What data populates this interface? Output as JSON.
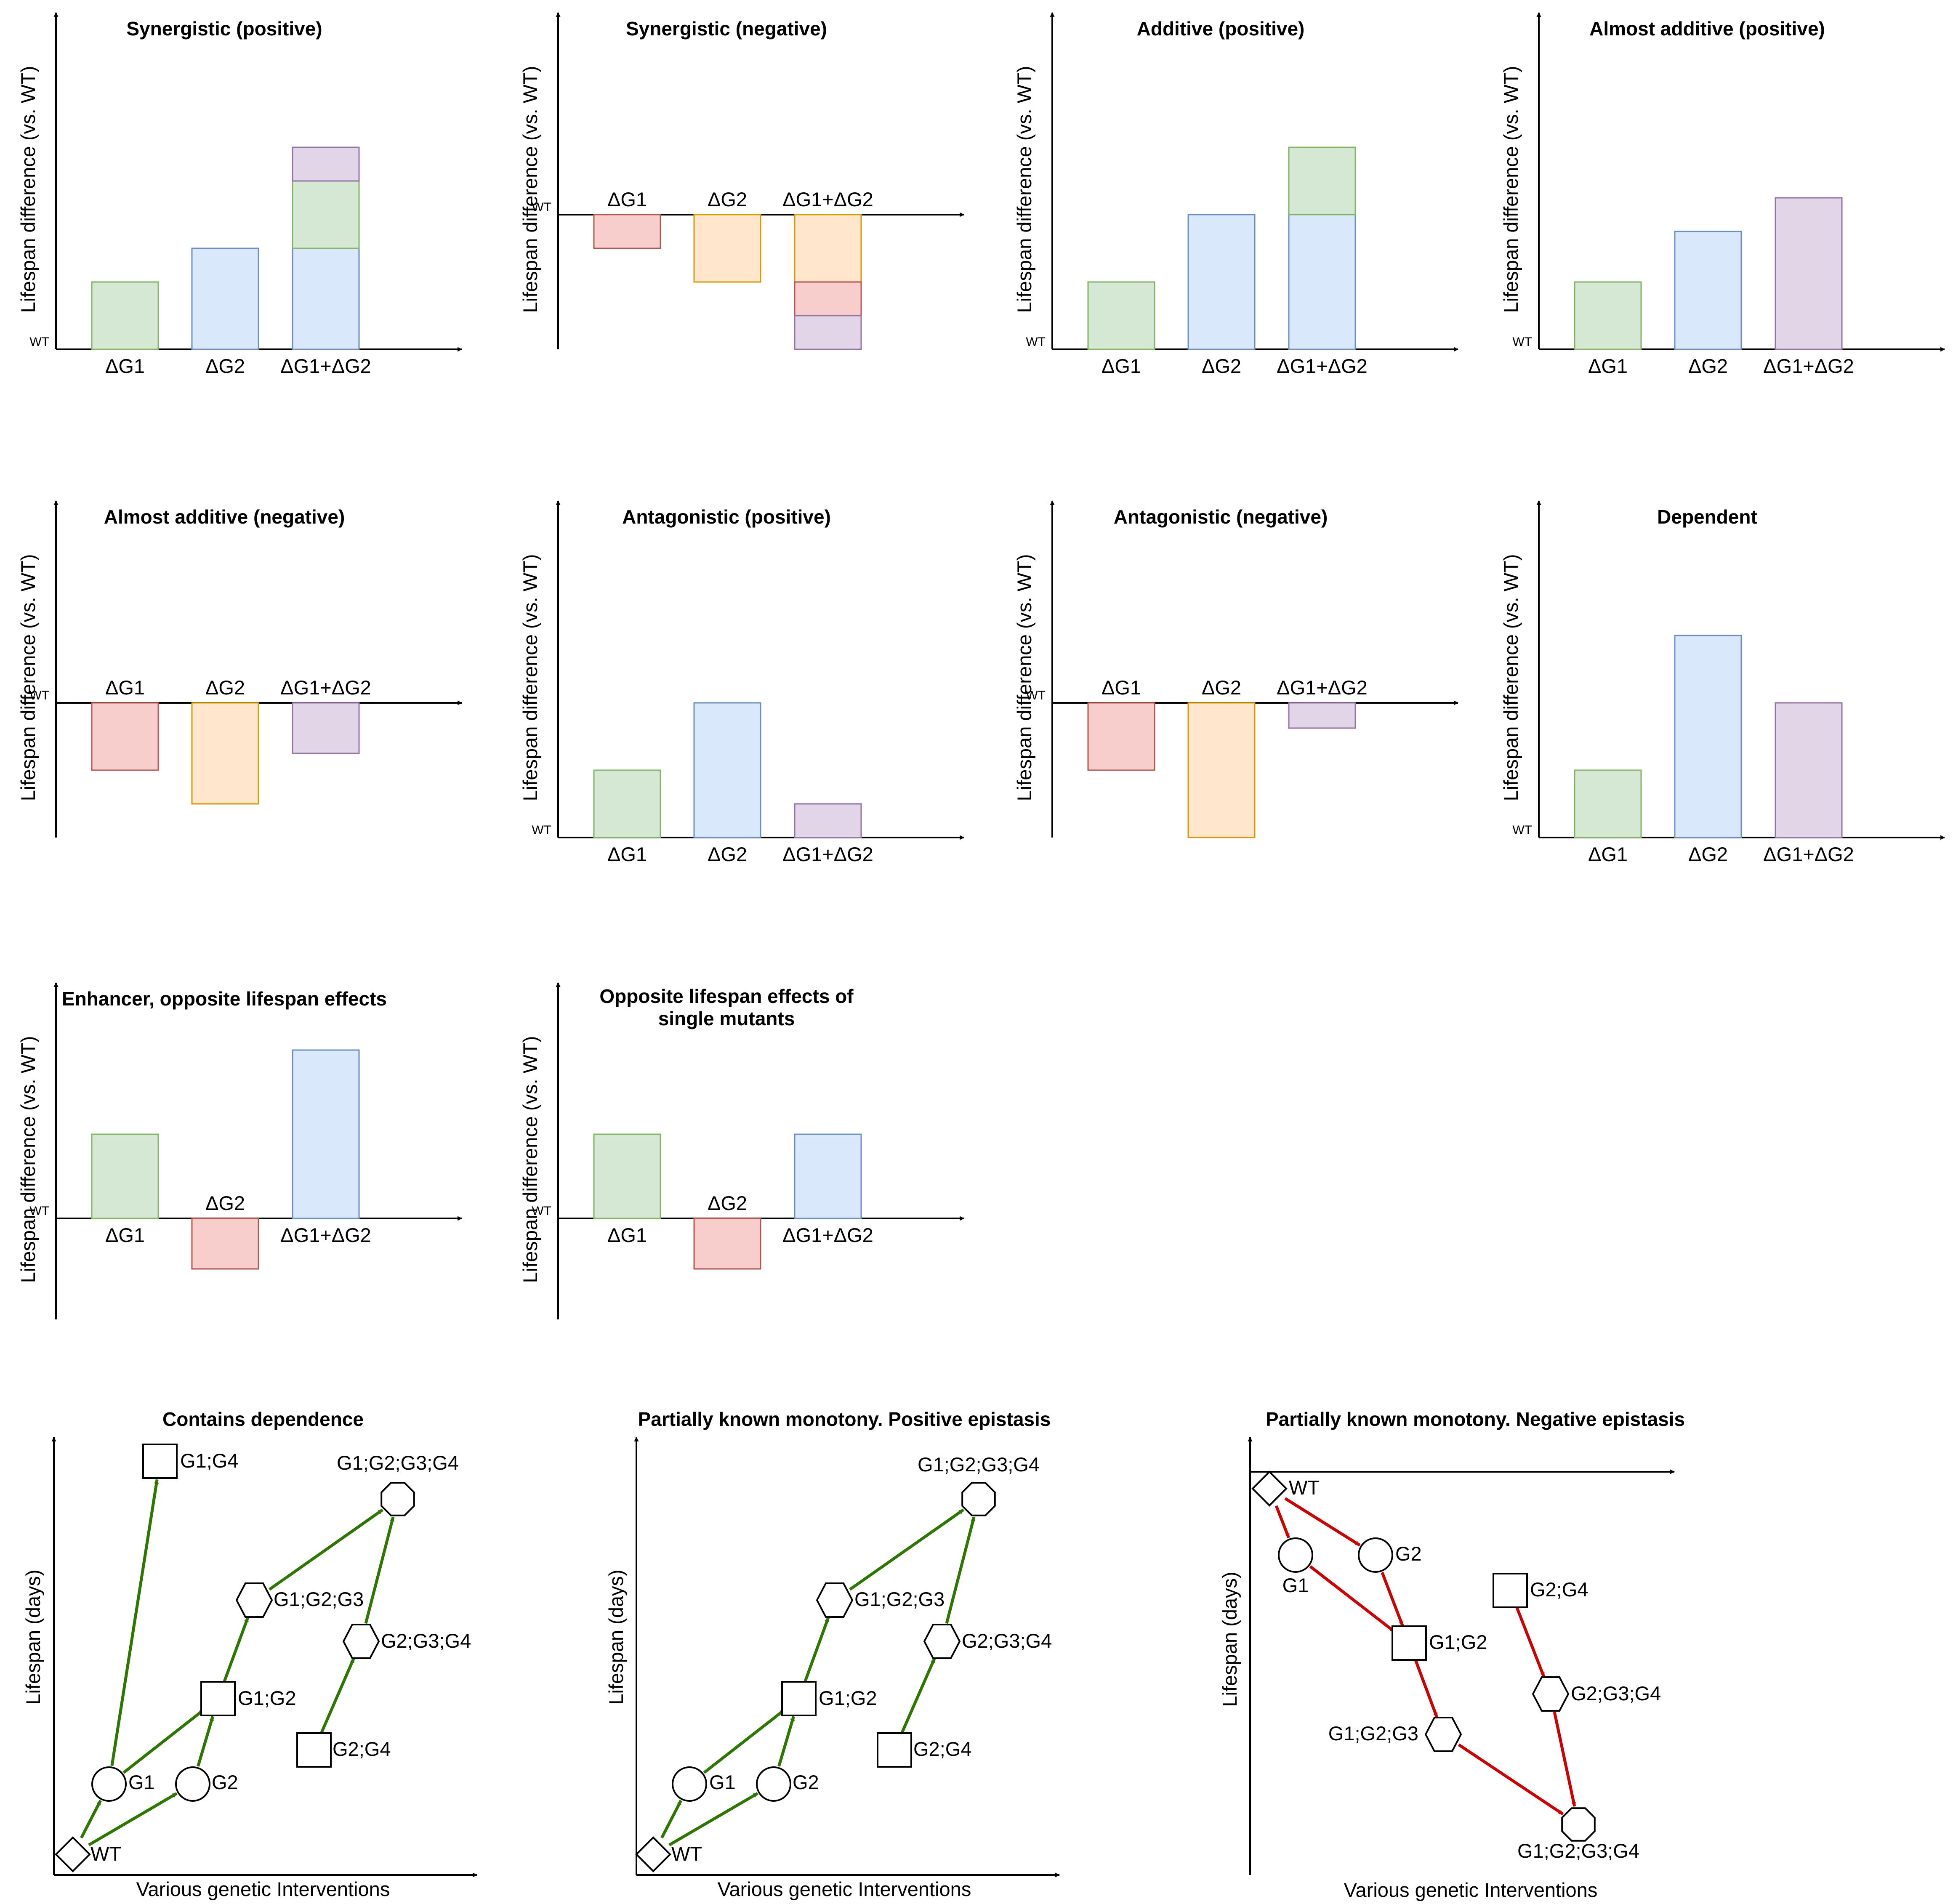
{
  "colors": {
    "green": {
      "fill": "#d5e8d4",
      "stroke": "#82b366"
    },
    "blue": {
      "fill": "#dae8fc",
      "stroke": "#6c8ebf"
    },
    "purple": {
      "fill": "#e1d5e7",
      "stroke": "#9673a6"
    },
    "red": {
      "fill": "#f8cecc",
      "stroke": "#b85450"
    },
    "orange": {
      "fill": "#ffe6cc",
      "stroke": "#d79b00"
    },
    "pos_edge": "#2d7600",
    "neg_edge": "#cc0000"
  },
  "bar_panels": [
    {
      "title": "Synergistic (positive)",
      "y_label": "Lifespan difference (vs. WT)",
      "wt_label": "WT",
      "baseline": "bottom",
      "labels": [
        "ΔG1",
        "ΔG2",
        "ΔG1+ΔG2"
      ],
      "bars": [
        [
          {
            "h": 1,
            "c": "green"
          }
        ],
        [
          {
            "h": 1.5,
            "c": "blue"
          }
        ],
        [
          {
            "h": 1.5,
            "c": "blue"
          },
          {
            "h": 1,
            "c": "green"
          },
          {
            "h": 0.5,
            "c": "purple"
          }
        ]
      ]
    },
    {
      "title": "Synergistic (negative)",
      "y_label": "Lifespan difference (vs. WT)",
      "wt_label": "WT",
      "baseline": "middle",
      "labels": [
        "ΔG1",
        "ΔG2",
        "ΔG1+ΔG2"
      ],
      "bars": [
        [
          {
            "h": -0.5,
            "c": "red"
          }
        ],
        [
          {
            "h": -1,
            "c": "orange"
          }
        ],
        [
          {
            "h": -1,
            "c": "orange"
          },
          {
            "h": -0.5,
            "c": "red"
          },
          {
            "h": -0.5,
            "c": "purple"
          }
        ]
      ]
    },
    {
      "title": "Additive (positive)",
      "y_label": "Lifespan difference (vs. WT)",
      "wt_label": "WT",
      "baseline": "bottom",
      "labels": [
        "ΔG1",
        "ΔG2",
        "ΔG1+ΔG2"
      ],
      "bars": [
        [
          {
            "h": 1,
            "c": "green"
          }
        ],
        [
          {
            "h": 2,
            "c": "blue"
          }
        ],
        [
          {
            "h": 2,
            "c": "blue"
          },
          {
            "h": 1,
            "c": "green"
          }
        ]
      ]
    },
    {
      "title": "Almost additive (positive)",
      "y_label": "Lifespan difference (vs. WT)",
      "wt_label": "WT",
      "baseline": "bottom",
      "labels": [
        "ΔG1",
        "ΔG2",
        "ΔG1+ΔG2"
      ],
      "bars": [
        [
          {
            "h": 1,
            "c": "green"
          }
        ],
        [
          {
            "h": 1.75,
            "c": "blue"
          }
        ],
        [
          {
            "h": 2.25,
            "c": "purple"
          }
        ]
      ]
    },
    {
      "title": "Almost additive (negative)",
      "y_label": "Lifespan difference (vs. WT)",
      "wt_label": "WT",
      "baseline": "middle",
      "labels": [
        "ΔG1",
        "ΔG2",
        "ΔG1+ΔG2"
      ],
      "bars": [
        [
          {
            "h": -1,
            "c": "red"
          }
        ],
        [
          {
            "h": -1.5,
            "c": "orange"
          }
        ],
        [
          {
            "h": -0.75,
            "c": "purple"
          }
        ]
      ]
    },
    {
      "title": "Antagonistic (positive)",
      "y_label": "Lifespan difference (vs. WT)",
      "wt_label": "WT",
      "baseline": "bottom",
      "labels": [
        "ΔG1",
        "ΔG2",
        "ΔG1+ΔG2"
      ],
      "bars": [
        [
          {
            "h": 1,
            "c": "green"
          }
        ],
        [
          {
            "h": 2,
            "c": "blue"
          }
        ],
        [
          {
            "h": 0.5,
            "c": "purple"
          }
        ]
      ]
    },
    {
      "title": "Antagonistic (negative)",
      "y_label": "Lifespan difference (vs. WT)",
      "wt_label": "WT",
      "baseline": "middle",
      "labels": [
        "ΔG1",
        "ΔG2",
        "ΔG1+ΔG2"
      ],
      "bars": [
        [
          {
            "h": -1,
            "c": "red"
          }
        ],
        [
          {
            "h": -2,
            "c": "orange"
          }
        ],
        [
          {
            "h": -0.375,
            "c": "purple"
          }
        ]
      ]
    },
    {
      "title": "Dependent",
      "y_label": "Lifespan difference (vs. WT)",
      "wt_label": "WT",
      "baseline": "bottom",
      "labels": [
        "ΔG1",
        "ΔG2",
        "ΔG1+ΔG2"
      ],
      "bars": [
        [
          {
            "h": 1,
            "c": "green"
          }
        ],
        [
          {
            "h": 3,
            "c": "blue"
          }
        ],
        [
          {
            "h": 2,
            "c": "purple"
          }
        ]
      ]
    },
    {
      "title": "Enhancer, opposite lifespan effects",
      "y_label": "Lifespan difference (vs. WT)",
      "wt_label": "WT",
      "baseline": "middle",
      "labels": [
        "ΔG1",
        "ΔG2",
        "ΔG1+ΔG2"
      ],
      "bars": [
        [
          {
            "h": 1.25,
            "c": "green"
          }
        ],
        [
          {
            "h": -0.75,
            "c": "red"
          }
        ],
        [
          {
            "h": 2.5,
            "c": "blue"
          }
        ]
      ]
    },
    {
      "title": "Opposite lifespan effects of",
      "title2": "single mutants",
      "y_label": "Lifespan difference (vs. WT)",
      "wt_label": "WT",
      "baseline": "middle",
      "labels": [
        "ΔG1",
        "ΔG2",
        "ΔG1+ΔG2"
      ],
      "bars": [
        [
          {
            "h": 1.25,
            "c": "green"
          }
        ],
        [
          {
            "h": -0.75,
            "c": "red"
          }
        ],
        [
          {
            "h": 1.25,
            "c": "blue"
          }
        ]
      ]
    }
  ],
  "network_panels": [
    {
      "title": "Contains dependence",
      "y_label": "Lifespan (days)",
      "x_label": "Various genetic Interventions",
      "edge_color": "pos_edge",
      "nodes": [
        {
          "id": "WT",
          "shape": "diamond",
          "label": "WT"
        },
        {
          "id": "G1",
          "shape": "circle",
          "label": "G1"
        },
        {
          "id": "G2",
          "shape": "circle",
          "label": "G2"
        },
        {
          "id": "G1G2",
          "shape": "square",
          "label": "G1;G2"
        },
        {
          "id": "G1G2G3",
          "shape": "hexagon",
          "label": "G1;G2;G3"
        },
        {
          "id": "G1G2G3G4",
          "shape": "octagon",
          "label": "G1;G2;G3;G4"
        },
        {
          "id": "G1G4",
          "shape": "square",
          "label": "G1;G4"
        },
        {
          "id": "G2G4",
          "shape": "square",
          "label": "G2;G4"
        },
        {
          "id": "G2G3G4",
          "shape": "hexagon",
          "label": "G2;G3;G4"
        }
      ],
      "edges": [
        [
          "WT",
          "G1"
        ],
        [
          "WT",
          "G2"
        ],
        [
          "G1",
          "G1G4"
        ],
        [
          "G1",
          "G1G2"
        ],
        [
          "G2",
          "G1G2"
        ],
        [
          "G1G2",
          "G1G2G3"
        ],
        [
          "G1G2G3",
          "G1G2G3G4"
        ],
        [
          "G2G4",
          "G2G3G4"
        ],
        [
          "G2G3G4",
          "G1G2G3G4"
        ]
      ]
    },
    {
      "title": "Partially known monotony. Positive epistasis",
      "y_label": "Lifespan (days)",
      "x_label": "Various genetic Interventions",
      "edge_color": "pos_edge",
      "nodes": [
        {
          "id": "WT",
          "shape": "diamond",
          "label": "WT"
        },
        {
          "id": "G1",
          "shape": "circle",
          "label": "G1"
        },
        {
          "id": "G2",
          "shape": "circle",
          "label": "G2"
        },
        {
          "id": "G1G2",
          "shape": "square",
          "label": "G1;G2"
        },
        {
          "id": "G1G2G3",
          "shape": "hexagon",
          "label": "G1;G2;G3"
        },
        {
          "id": "G1G2G3G4",
          "shape": "octagon",
          "label": "G1;G2;G3;G4"
        },
        {
          "id": "G2G4",
          "shape": "square",
          "label": "G2;G4"
        },
        {
          "id": "G2G3G4",
          "shape": "hexagon",
          "label": "G2;G3;G4"
        }
      ],
      "edges": [
        [
          "WT",
          "G1"
        ],
        [
          "WT",
          "G2"
        ],
        [
          "G1",
          "G1G2"
        ],
        [
          "G2",
          "G1G2"
        ],
        [
          "G1G2",
          "G1G2G3"
        ],
        [
          "G1G2G3",
          "G1G2G3G4"
        ],
        [
          "G2G4",
          "G2G3G4"
        ],
        [
          "G2G3G4",
          "G1G2G3G4"
        ]
      ]
    },
    {
      "title": "Partially known monotony. Negative epistasis",
      "y_label": "Lifespan (days)",
      "x_label": "Various genetic Interventions",
      "edge_color": "neg_edge",
      "nodes": [
        {
          "id": "WT",
          "shape": "diamond",
          "label": "WT"
        },
        {
          "id": "G1",
          "shape": "circle",
          "label": "G1"
        },
        {
          "id": "G2",
          "shape": "circle",
          "label": "G2"
        },
        {
          "id": "G1G2",
          "shape": "square",
          "label": "G1;G2"
        },
        {
          "id": "G1G2G3",
          "shape": "hexagon",
          "label": "G1;G2;G3"
        },
        {
          "id": "G2G4",
          "shape": "square",
          "label": "G2;G4"
        },
        {
          "id": "G2G3G4",
          "shape": "hexagon",
          "label": "G2;G3;G4"
        },
        {
          "id": "G1G2G3G4",
          "shape": "octagon",
          "label": "G1;G2;G3;G4"
        }
      ],
      "edges": [
        [
          "WT",
          "G1"
        ],
        [
          "WT",
          "G2"
        ],
        [
          "G1",
          "G1G2"
        ],
        [
          "G2",
          "G1G2"
        ],
        [
          "G1G2",
          "G1G2G3"
        ],
        [
          "G1G2G3",
          "G1G2G3G4"
        ],
        [
          "G2G4",
          "G2G3G4"
        ],
        [
          "G2G3G4",
          "G1G2G3G4"
        ]
      ]
    }
  ]
}
